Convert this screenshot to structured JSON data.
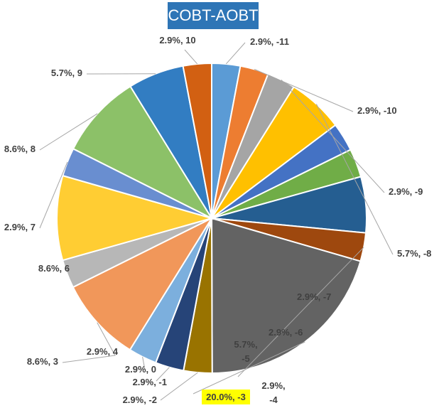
{
  "chart_data": {
    "type": "pie",
    "title": "COBT-AOBT",
    "slices": [
      {
        "label": "2.9%, -11",
        "value": 2.9,
        "color": "#5b9bd5"
      },
      {
        "label": "2.9%, -10",
        "value": 2.9,
        "color": "#ed7d31"
      },
      {
        "label": "2.9%, -9",
        "value": 2.9,
        "color": "#a5a5a5"
      },
      {
        "label": "5.7%, -8",
        "value": 5.7,
        "color": "#ffc000"
      },
      {
        "label": "2.9%, -7",
        "value": 2.9,
        "color": "#4472c4"
      },
      {
        "label": "2.9%, -6",
        "value": 2.9,
        "color": "#70ad47"
      },
      {
        "label": "5.7%, -5",
        "value": 5.7,
        "color": "#255e91"
      },
      {
        "label": "2.9%, -4",
        "value": 2.9,
        "color": "#9e480e"
      },
      {
        "label": "20.0%, -3",
        "value": 20.0,
        "color": "#636363",
        "highlight": "#ffff00"
      },
      {
        "label": "2.9%, -2",
        "value": 2.9,
        "color": "#997300"
      },
      {
        "label": "2.9%, -1",
        "value": 2.9,
        "color": "#264478"
      },
      {
        "label": "2.9%, 0",
        "value": 2.9,
        "color": "#7cafdd"
      },
      {
        "label": "8.6%, 3",
        "value": 8.6,
        "color": "#f1975a"
      },
      {
        "label": "2.9%, 4",
        "value": 2.9,
        "color": "#b7b7b7"
      },
      {
        "label": "8.6%, 6",
        "value": 8.6,
        "color": "#ffcd33"
      },
      {
        "label": "2.9%, 7",
        "value": 2.9,
        "color": "#698ed0"
      },
      {
        "label": "8.6%, 8",
        "value": 8.6,
        "color": "#8cc168"
      },
      {
        "label": "5.7%, 9",
        "value": 5.7,
        "color": "#327dc2"
      },
      {
        "label": "2.9%, 10",
        "value": 2.9,
        "color": "#d26012"
      }
    ]
  }
}
